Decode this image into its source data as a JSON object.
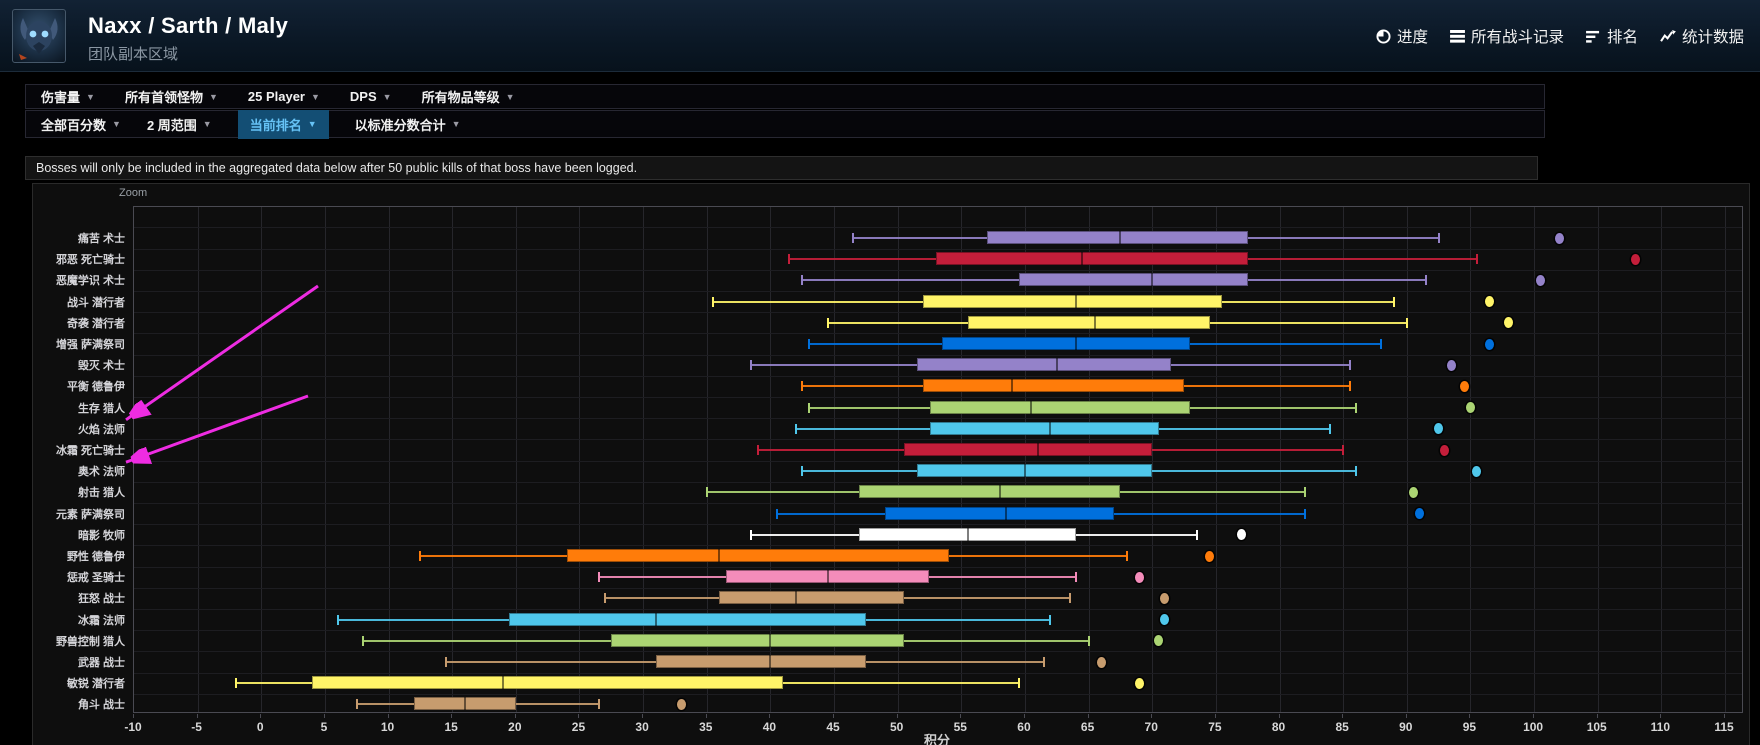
{
  "header": {
    "title": "Naxx / Sarth / Maly",
    "subtitle": "团队副本区域",
    "nav": [
      {
        "icon": "progress-icon",
        "label": "进度"
      },
      {
        "icon": "all-reports-icon",
        "label": "所有战斗记录"
      },
      {
        "icon": "rankings-icon",
        "label": "排名"
      },
      {
        "icon": "statistics-icon",
        "label": "统计数据"
      }
    ]
  },
  "filter_bar": {
    "items": [
      {
        "label": "伤害量"
      },
      {
        "label": "所有首领怪物"
      },
      {
        "label": "25 Player"
      },
      {
        "label": "DPS"
      },
      {
        "label": "所有物品等级"
      }
    ]
  },
  "view_bar": {
    "items": [
      {
        "label": "全部百分数",
        "active": false
      },
      {
        "label": "2 周范围",
        "active": false
      },
      {
        "label": "当前排名",
        "active": true
      },
      {
        "label": "以标准分数合计",
        "active": false
      }
    ]
  },
  "notice": "Bosses will only be included in the aggregated data below after 50 public kills of that boss have been logged.",
  "chart_data": {
    "type": "boxplot",
    "zoom_label": "Zoom",
    "xlabel": "积分",
    "x_min": -10,
    "x_max": 115,
    "x_tick_step": 5,
    "grid": true,
    "class_colors": {
      "warlock": "#9482C9",
      "deathknight": "#C41E3A",
      "rogue": "#FFF468",
      "shaman": "#0070DD",
      "druid": "#FF7C0A",
      "hunter": "#ABD473",
      "mage": "#4FC7EB",
      "priest": "#FFFFFF",
      "paladin": "#F48CBA",
      "warrior": "#C79C6E"
    },
    "rows": [
      {
        "label": "痛苦 术士",
        "class": "warlock",
        "low": 46.5,
        "q1": 57,
        "median": 67.5,
        "q3": 77.5,
        "high": 92.5,
        "dot": 102
      },
      {
        "label": "邪恶 死亡骑士",
        "class": "deathknight",
        "low": 41.5,
        "q1": 53,
        "median": 64.5,
        "q3": 77.5,
        "high": 95.5,
        "dot": 108
      },
      {
        "label": "恶魔学识 术士",
        "class": "warlock",
        "low": 42.5,
        "q1": 59.5,
        "median": 70,
        "q3": 77.5,
        "high": 91.5,
        "dot": 100.5
      },
      {
        "label": "战斗 潜行者",
        "class": "rogue",
        "low": 35.5,
        "q1": 52,
        "median": 64,
        "q3": 75.5,
        "high": 89,
        "dot": 96.5
      },
      {
        "label": "奇袭 潜行者",
        "class": "rogue",
        "low": 44.5,
        "q1": 55.5,
        "median": 65.5,
        "q3": 74.5,
        "high": 90,
        "dot": 98
      },
      {
        "label": "增强 萨满祭司",
        "class": "shaman",
        "low": 43,
        "q1": 53.5,
        "median": 64,
        "q3": 73,
        "high": 88,
        "dot": 96.5
      },
      {
        "label": "毁灭 术士",
        "class": "warlock",
        "low": 38.5,
        "q1": 51.5,
        "median": 62.5,
        "q3": 71.5,
        "high": 85.5,
        "dot": 93.5
      },
      {
        "label": "平衡 德鲁伊",
        "class": "druid",
        "low": 42.5,
        "q1": 52,
        "median": 59,
        "q3": 72.5,
        "high": 85.5,
        "dot": 94.5
      },
      {
        "label": "生存 猎人",
        "class": "hunter",
        "low": 43,
        "q1": 52.5,
        "median": 60.5,
        "q3": 73,
        "high": 86,
        "dot": 95
      },
      {
        "label": "火焰 法师",
        "class": "mage",
        "low": 42,
        "q1": 52.5,
        "median": 62,
        "q3": 70.5,
        "high": 84,
        "dot": 92.5
      },
      {
        "label": "冰霜 死亡骑士",
        "class": "deathknight",
        "low": 39,
        "q1": 50.5,
        "median": 61,
        "q3": 70,
        "high": 85,
        "dot": 93
      },
      {
        "label": "奥术 法师",
        "class": "mage",
        "low": 42.5,
        "q1": 51.5,
        "median": 60,
        "q3": 70,
        "high": 86,
        "dot": 95.5
      },
      {
        "label": "射击 猎人",
        "class": "hunter",
        "low": 35,
        "q1": 47,
        "median": 58,
        "q3": 67.5,
        "high": 82,
        "dot": 90.5
      },
      {
        "label": "元素 萨满祭司",
        "class": "shaman",
        "low": 40.5,
        "q1": 49,
        "median": 58.5,
        "q3": 67,
        "high": 82,
        "dot": 91
      },
      {
        "label": "暗影 牧师",
        "class": "priest",
        "low": 38.5,
        "q1": 47,
        "median": 55.5,
        "q3": 64,
        "high": 73.5,
        "dot": 77
      },
      {
        "label": "野性 德鲁伊",
        "class": "druid",
        "low": 12.5,
        "q1": 24,
        "median": 36,
        "q3": 54,
        "high": 68,
        "dot": 74.5
      },
      {
        "label": "惩戒 圣骑士",
        "class": "paladin",
        "low": 26.5,
        "q1": 36.5,
        "median": 44.5,
        "q3": 52.5,
        "high": 64,
        "dot": 69
      },
      {
        "label": "狂怒 战士",
        "class": "warrior",
        "low": 27,
        "q1": 36,
        "median": 42,
        "q3": 50.5,
        "high": 63.5,
        "dot": 71
      },
      {
        "label": "冰霜 法师",
        "class": "mage",
        "low": 6,
        "q1": 19.5,
        "median": 31,
        "q3": 47.5,
        "high": 62,
        "dot": 71
      },
      {
        "label": "野兽控制 猎人",
        "class": "hunter",
        "low": 8,
        "q1": 27.5,
        "median": 40,
        "q3": 50.5,
        "high": 65,
        "dot": 70.5
      },
      {
        "label": "武器 战士",
        "class": "warrior",
        "low": 14.5,
        "q1": 31,
        "median": 40,
        "q3": 47.5,
        "high": 61.5,
        "dot": 66
      },
      {
        "label": "敏锐 潜行者",
        "class": "rogue",
        "low": -2,
        "q1": 4,
        "median": 19,
        "q3": 41,
        "high": 59.5,
        "dot": 69
      },
      {
        "label": "角斗 战士",
        "class": "warrior",
        "low": 7.5,
        "q1": 12,
        "median": 16,
        "q3": 20,
        "high": 26.5,
        "dot": 33
      }
    ]
  },
  "annotations": {
    "color": "#ee2ce2",
    "arrows": [
      {
        "target": "火焰 法师"
      },
      {
        "target": "奥术 法师"
      }
    ]
  }
}
